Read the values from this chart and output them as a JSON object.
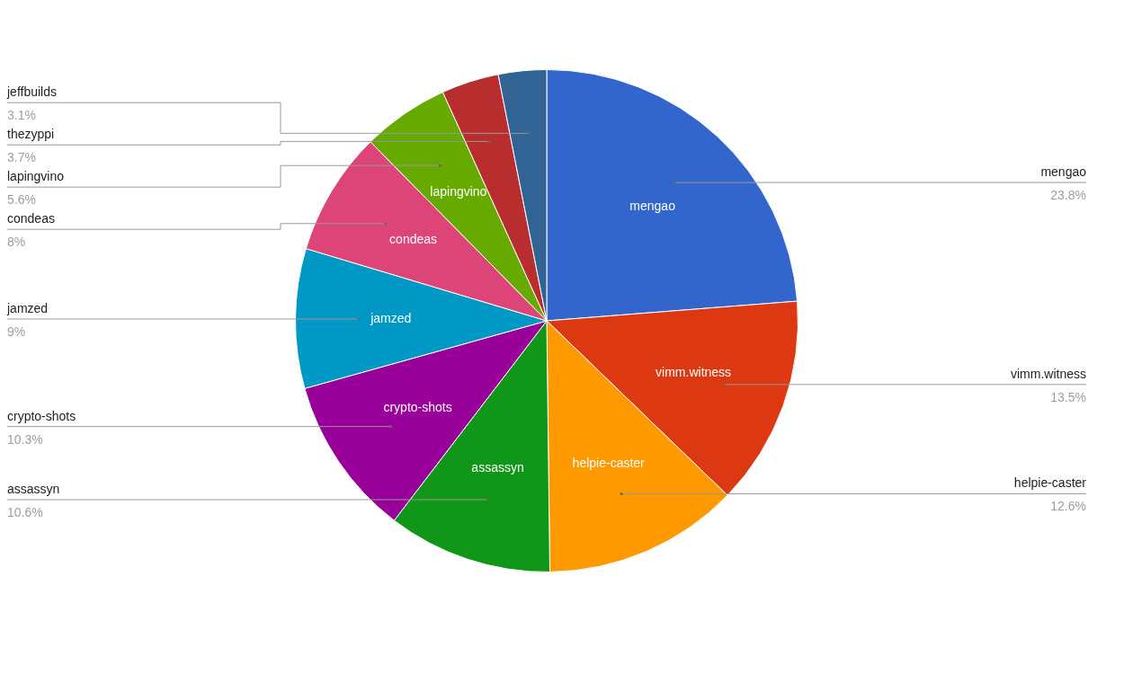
{
  "chart_data": {
    "type": "pie",
    "categories": [
      "mengao",
      "vimm.witness",
      "helpie-caster",
      "assassyn",
      "crypto-shots",
      "jamzed",
      "condeas",
      "lapingvino",
      "thezyppi",
      "jeffbuilds"
    ],
    "values": [
      23.8,
      13.5,
      12.6,
      10.6,
      10.3,
      9,
      8,
      5.6,
      3.7,
      3.1
    ],
    "value_labels": [
      "23.8%",
      "13.5%",
      "12.6%",
      "10.6%",
      "10.3%",
      "9%",
      "8%",
      "5.6%",
      "3.7%",
      "3.1%"
    ],
    "colors": [
      "#3366cc",
      "#dc3912",
      "#ff9900",
      "#109618",
      "#990099",
      "#0099c6",
      "#dd4477",
      "#66aa00",
      "#b82e2e",
      "#316395"
    ]
  }
}
